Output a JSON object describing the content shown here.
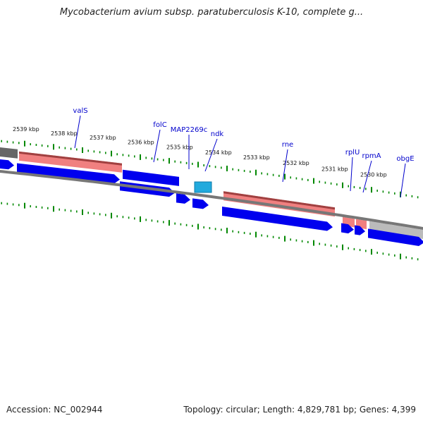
{
  "title": "Mycobacterium avium subsp. paratuberculosis K-10, complete g...",
  "footer": {
    "accession": "Accession: NC_002944",
    "summary": "Topology: circular; Length: 4,829,781 bp; Genes: 4,399"
  },
  "colors": {
    "gene_forward": "#0000ee",
    "rna_gene": "#f08080",
    "rna_gene_dark": "#a04040",
    "highlighted_gene": "#22aadd",
    "grey_gene": "#bbbbbb",
    "dark_gene": "#666666",
    "tick": "#008800",
    "backbone": "#777777",
    "gene_label": "#0000cc"
  },
  "scale_labels": [
    "2539 kbp",
    "2538 kbp",
    "2537 kbp",
    "2536 kbp",
    "2535 kbp",
    "2534 kbp",
    "2533 kbp",
    "2532 kbp",
    "2531 kbp",
    "2530 kbp"
  ],
  "gene_labels": [
    "valS",
    "folC",
    "MAP2269c",
    "ndk",
    "rne",
    "rplU",
    "rpmA",
    "obgE"
  ]
}
